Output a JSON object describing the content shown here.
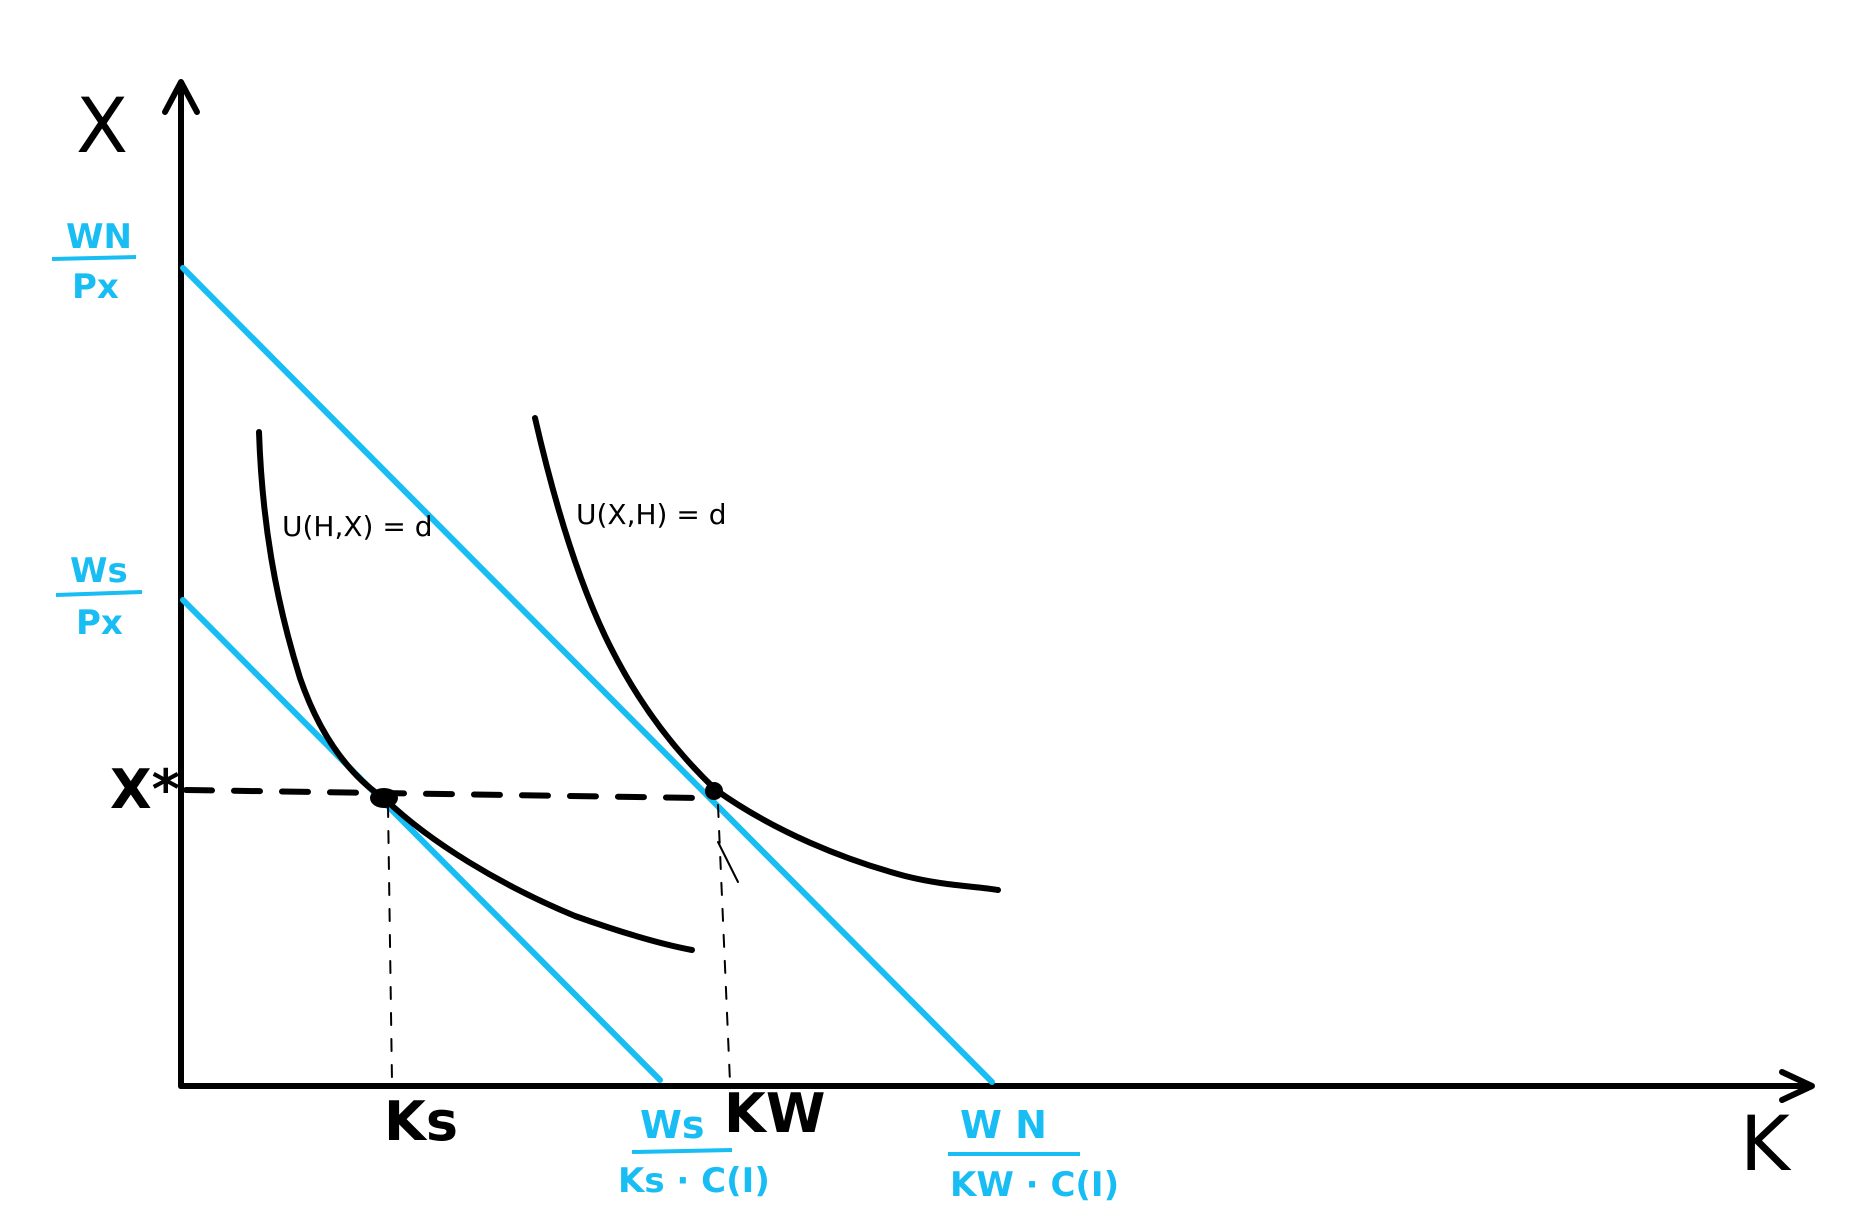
{
  "colors": {
    "ink": "#000000",
    "budget": "#18bdf3"
  },
  "axes": {
    "y_label": "X",
    "x_label": "K"
  },
  "y_ticks": {
    "xstar": "X*",
    "wn_px": {
      "num": "WN",
      "den": "Px"
    },
    "ws_px": {
      "num": "Ws",
      "den": "Px"
    }
  },
  "x_ticks": {
    "ks": "Ks",
    "kw": "KW",
    "ws_frac": {
      "num": "Ws",
      "den": "Ks · C(I)"
    },
    "wn_frac": {
      "num": "W N",
      "den": "KW · C(I)"
    }
  },
  "curves": {
    "left_label": "U(H,X) = d",
    "right_label": "U(X,H) = d"
  }
}
